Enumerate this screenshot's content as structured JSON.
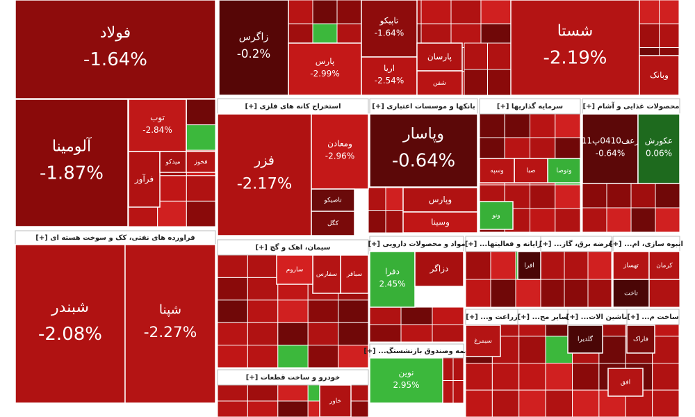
{
  "chart_data": {
    "type": "treemap",
    "headers": [
      "[+] فراورده های نفتی، کک و سوخت هسته ای",
      "[+] استخراج کانه های فلزی",
      "[+] بانکها و موسسات اعتباری",
      "[+] سرمایه گذاریها",
      "[+] محصولات غذایی و آشام",
      "[+] سیمان، اهک و گچ",
      "[+] مواد و محصولات دارویی",
      "[+] ...رایانه و فعالیتها",
      "[+] ...عرضه برق، گاز",
      "[+] ...انبوه سازی، ام",
      "[+] خودرو و ساخت قطعات",
      "[+] ...بیمه وصندوق بازنشستگ",
      "[+] ...زراعت و",
      "[+] ...سایر مح",
      "[+] ...ماشین الات",
      "[+] ...ساخت م"
    ],
    "tiles": [
      {
        "name": "فولاد",
        "value": -1.64,
        "value_label": "-1.64%",
        "color": "#8e0c0c"
      },
      {
        "name": "آلومینا",
        "value": -1.87,
        "value_label": "-1.87%",
        "color": "#8a0a0a"
      },
      {
        "name": "شبندر",
        "value": -2.08,
        "value_label": "-2.08%",
        "color": "#b01212"
      },
      {
        "name": "شپنا",
        "value": -2.27,
        "value_label": "-2.27%",
        "color": "#b41414"
      },
      {
        "name": "زاگرس",
        "value": -0.2,
        "value_label": "-0.2%",
        "color": "#560606"
      },
      {
        "name": "شستا",
        "value": -2.19,
        "value_label": "-2.19%",
        "color": "#b41414"
      },
      {
        "name": "فزر",
        "value": -2.17,
        "value_label": "-2.17%",
        "color": "#b01212"
      },
      {
        "name": "وپاسار",
        "value": -0.64,
        "value_label": "-0.64%",
        "color": "#5c0808"
      },
      {
        "name": "ومعادن",
        "value": -2.96,
        "value_label": "-2.96%",
        "color": "#c41818"
      },
      {
        "name": "نوین",
        "value": 2.95,
        "value_label": "2.95%",
        "color": "#3cb83c"
      },
      {
        "name": "زعف0410پ11",
        "value": -0.64,
        "value_label": "-0.64%",
        "color": "#5c0808"
      },
      {
        "name": "عکورش",
        "value": 0.06,
        "value_label": "0.06%",
        "color": "#1e6a1e"
      },
      {
        "name": "پارس",
        "value": -2.99,
        "value_label": "-2.99%",
        "color": "#c41818"
      },
      {
        "name": "توب",
        "value": -2.84,
        "value_label": "-2.84%",
        "color": "#c01818"
      },
      {
        "name": "دفرا",
        "value": 2.45,
        "value_label": "2.45%",
        "color": "#38b038"
      },
      {
        "name": "تاپیکو",
        "value": -1.64,
        "value_label": "-1.64%",
        "color": "#8e0c0c"
      },
      {
        "name": "اریا",
        "value": -2.54,
        "value_label": "-2.54%",
        "color": "#b81414"
      },
      {
        "name": "فرآور",
        "color": "#b01212"
      },
      {
        "name": "میدکو",
        "color": "#a81010"
      },
      {
        "name": "فخوز",
        "color": "#b41414"
      },
      {
        "name": "پارسان",
        "color": "#b01212"
      },
      {
        "name": "شفن",
        "color": "#b81414"
      },
      {
        "name": "وبانک",
        "color": "#b41414"
      },
      {
        "name": "تاصیکو",
        "color": "#6a0a0a"
      },
      {
        "name": "کگل",
        "color": "#7a0a0a"
      },
      {
        "name": "وپارس",
        "color": "#b01212"
      },
      {
        "name": "وسینا",
        "color": "#c01616"
      },
      {
        "name": "وتوصا",
        "color": "#38b038"
      },
      {
        "name": "ونو",
        "color": "#38b038"
      },
      {
        "name": "صبا",
        "color": "#b81414"
      },
      {
        "name": "وسپه",
        "color": "#b81414"
      },
      {
        "name": "سباقر",
        "color": "#b81414"
      },
      {
        "name": "سفارس",
        "color": "#b41414"
      },
      {
        "name": "ساروم",
        "color": "#d42020"
      },
      {
        "name": "دزاگر",
        "color": "#a81010"
      },
      {
        "name": "افرا",
        "color": "#4a0606"
      },
      {
        "name": "تهساز",
        "color": "#b41414"
      },
      {
        "name": "کرمان",
        "color": "#b41414"
      },
      {
        "name": "تاخت",
        "color": "#4a0606"
      },
      {
        "name": "خاور",
        "color": "#b01212"
      },
      {
        "name": "سیمرغ",
        "color": "#b41414"
      },
      {
        "name": "گلدیرا",
        "color": "#4a0606"
      },
      {
        "name": "فاراک",
        "color": "#7a0a0a"
      },
      {
        "name": "افق",
        "color": "#b41414"
      }
    ]
  }
}
